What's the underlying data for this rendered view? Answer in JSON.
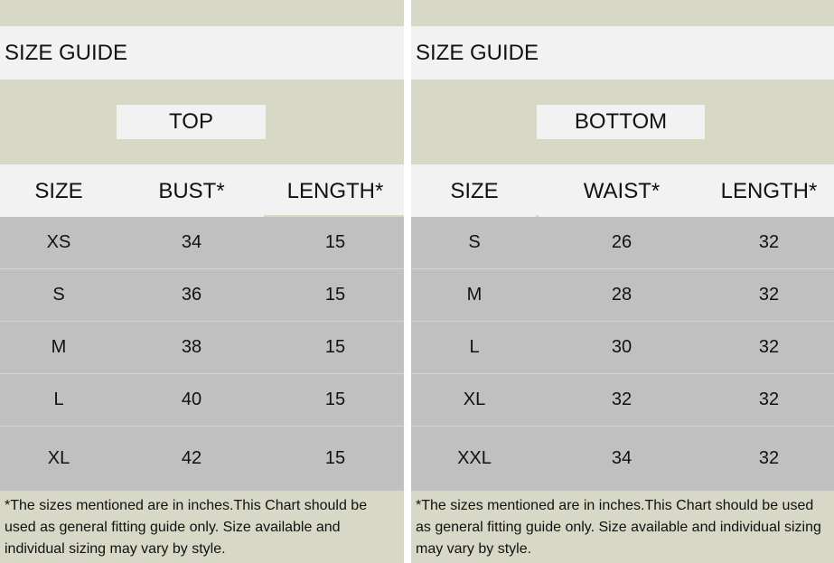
{
  "colors": {
    "beige": "#d8d8c6",
    "gray": "#c0c0c0",
    "white": "#f2f2f2"
  },
  "top": {
    "title": "SIZE GUIDE",
    "section": "TOP",
    "headers": [
      "SIZE",
      "BUST*",
      "LENGTH*"
    ],
    "rows": [
      [
        "XS",
        "34",
        "15"
      ],
      [
        "S",
        "36",
        "15"
      ],
      [
        "M",
        "38",
        "15"
      ],
      [
        "L",
        "40",
        "15"
      ],
      [
        "XL",
        "42",
        "15"
      ]
    ],
    "note": "*The sizes mentioned are in inches.This Chart should be used as general fitting guide only. Size available and individual sizing may vary by style."
  },
  "bottom": {
    "title": "SIZE GUIDE",
    "section": "BOTTOM",
    "headers": [
      "SIZE",
      "WAIST*",
      "LENGTH*"
    ],
    "rows": [
      [
        "S",
        "26",
        "32"
      ],
      [
        "M",
        "28",
        "32"
      ],
      [
        "L",
        "30",
        "32"
      ],
      [
        "XL",
        "32",
        "32"
      ],
      [
        "XXL",
        "34",
        "32"
      ]
    ],
    "note": "*The sizes mentioned are in inches.This Chart should be used as general fitting guide only. Size available and individual sizing may vary by style."
  }
}
